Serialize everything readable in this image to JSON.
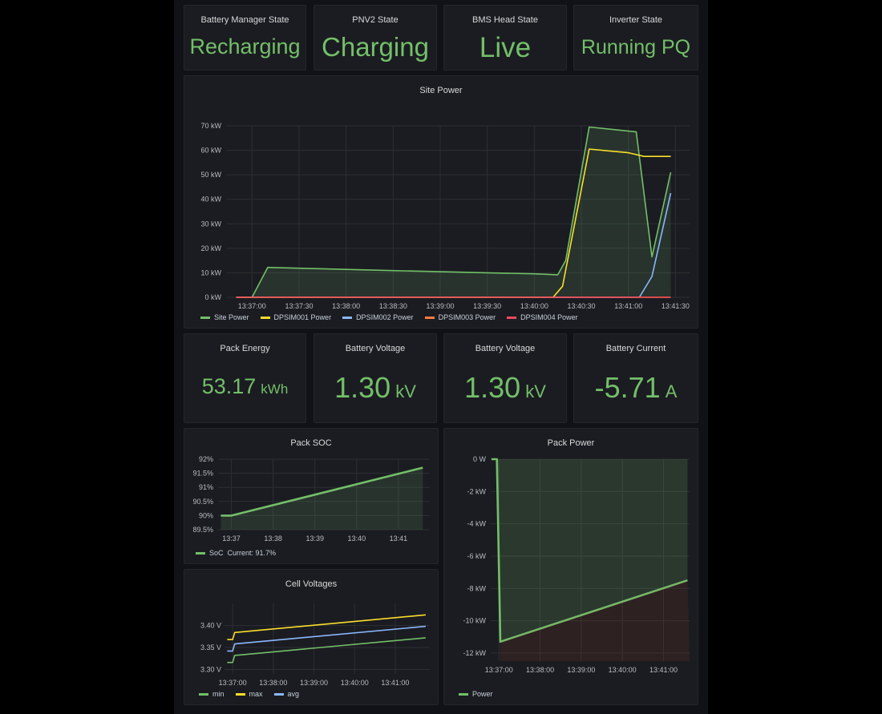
{
  "stats_top": [
    {
      "title": "Battery Manager State",
      "value": "Recharging"
    },
    {
      "title": "PNV2 State",
      "value": "Charging"
    },
    {
      "title": "BMS Head State",
      "value": "Live"
    },
    {
      "title": "Inverter State",
      "value": "Running PQ"
    }
  ],
  "stats_mid": [
    {
      "title": "Pack Energy",
      "value": "53.17",
      "unit": "kWh"
    },
    {
      "title": "Battery Voltage",
      "value": "1.30",
      "unit": "kV"
    },
    {
      "title": "Battery Voltage",
      "value": "1.30",
      "unit": "kV"
    },
    {
      "title": "Battery Current",
      "value": "-5.71",
      "unit": "A"
    }
  ],
  "colors": {
    "green": "#73bf69",
    "yellow": "#fade2a",
    "blue": "#8ab8ff",
    "orange": "#ff7c3f",
    "pink": "#f2495c"
  },
  "chart_data": [
    {
      "type": "line",
      "title": "Site Power",
      "yticks": [
        "0 kW",
        "10 kW",
        "20 kW",
        "30 kW",
        "40 kW",
        "50 kW",
        "60 kW",
        "70 kW"
      ],
      "ylim": [
        0,
        70
      ],
      "xticks": [
        "13:37:00",
        "13:37:30",
        "13:38:00",
        "13:38:30",
        "13:39:00",
        "13:39:30",
        "13:40:00",
        "13:40:30",
        "13:41:00",
        "13:41:30"
      ],
      "xlim": [
        "13:36:44",
        "13:41:39"
      ],
      "series": [
        {
          "name": "Site Power",
          "color": "#73bf69",
          "fill": true,
          "points": [
            [
              "13:36:50",
              0
            ],
            [
              "13:37:00",
              0
            ],
            [
              "13:37:10",
              12.2
            ],
            [
              "13:37:40",
              11.7
            ],
            [
              "13:38:30",
              10.9
            ],
            [
              "13:39:30",
              10
            ],
            [
              "13:40:00",
              9.6
            ],
            [
              "13:40:15",
              9.2
            ],
            [
              "13:40:20",
              15
            ],
            [
              "13:40:35",
              69.5
            ],
            [
              "13:41:05",
              67.5
            ],
            [
              "13:41:15",
              16.5
            ],
            [
              "13:41:27",
              51
            ]
          ]
        },
        {
          "name": "DPSIM001 Power",
          "color": "#fade2a",
          "fill": false,
          "points": [
            [
              "13:36:50",
              0
            ],
            [
              "13:40:12",
              0
            ],
            [
              "13:40:18",
              4.5
            ],
            [
              "13:40:35",
              60.5
            ],
            [
              "13:41:00",
              59
            ],
            [
              "13:41:10",
              57.5
            ],
            [
              "13:41:27",
              57.5
            ]
          ]
        },
        {
          "name": "DPSIM002 Power",
          "color": "#8ab8ff",
          "fill": false,
          "points": [
            [
              "13:36:50",
              0
            ],
            [
              "13:41:07",
              0
            ],
            [
              "13:41:15",
              8.5
            ],
            [
              "13:41:27",
              42.5
            ]
          ]
        },
        {
          "name": "DPSIM003 Power",
          "color": "#ff7c3f",
          "fill": false,
          "points": [
            [
              "13:36:50",
              0
            ],
            [
              "13:41:27",
              0
            ]
          ]
        },
        {
          "name": "DPSIM004 Power",
          "color": "#f2495c",
          "fill": false,
          "points": [
            [
              "13:36:50",
              0
            ],
            [
              "13:41:27",
              0
            ]
          ]
        }
      ]
    },
    {
      "type": "area",
      "title": "Pack SOC",
      "yticks": [
        "89.5%",
        "90%",
        "90.5%",
        "91%",
        "91.5%",
        "92%"
      ],
      "ylim": [
        89.5,
        92
      ],
      "xticks": [
        "13:37",
        "13:38",
        "13:39",
        "13:40",
        "13:41"
      ],
      "xlim": [
        "13:36:41",
        "13:41:45"
      ],
      "series": [
        {
          "name": "SoC",
          "color": "#73bf69",
          "points": [
            [
              "13:36:45",
              90
            ],
            [
              "13:37:00",
              90
            ],
            [
              "13:41:35",
              91.7
            ]
          ]
        }
      ],
      "legend": {
        "label": "SoC",
        "current_text": "Current: 91.7%"
      }
    },
    {
      "type": "line",
      "title": "Cell Voltages",
      "yticks": [
        "3.30 V",
        "3.35 V",
        "3.40 V"
      ],
      "ylim": [
        3.29,
        3.45
      ],
      "xticks": [
        "13:37:00",
        "13:38:00",
        "13:39:00",
        "13:40:00",
        "13:41:00"
      ],
      "xlim": [
        "13:36:48",
        "13:41:51"
      ],
      "series": [
        {
          "name": "min",
          "color": "#73bf69",
          "points": [
            [
              "13:36:52",
              3.316
            ],
            [
              "13:37:00",
              3.316
            ],
            [
              "13:37:03",
              3.332
            ],
            [
              "13:41:45",
              3.372
            ]
          ]
        },
        {
          "name": "max",
          "color": "#fade2a",
          "points": [
            [
              "13:36:52",
              3.368
            ],
            [
              "13:37:00",
              3.368
            ],
            [
              "13:37:03",
              3.384
            ],
            [
              "13:41:45",
              3.424
            ]
          ]
        },
        {
          "name": "avg",
          "color": "#8ab8ff",
          "points": [
            [
              "13:36:52",
              3.342
            ],
            [
              "13:37:00",
              3.342
            ],
            [
              "13:37:03",
              3.358
            ],
            [
              "13:41:45",
              3.398
            ]
          ]
        }
      ]
    },
    {
      "type": "area",
      "title": "Pack Power",
      "yticks": [
        "0 W",
        "-2 kW",
        "-4 kW",
        "-6 kW",
        "-8 kW",
        "-10 kW",
        "-12 kW"
      ],
      "ylim": [
        -12.5,
        0
      ],
      "xticks": [
        "13:37:00",
        "13:38:00",
        "13:39:00",
        "13:40:00",
        "13:41:00"
      ],
      "xlim": [
        "13:36:48",
        "13:41:38"
      ],
      "series": [
        {
          "name": "Power",
          "color": "#73bf69",
          "points": [
            [
              "13:36:49",
              0
            ],
            [
              "13:36:57",
              0
            ],
            [
              "13:37:02",
              -11.3
            ],
            [
              "13:41:35",
              -7.5
            ]
          ]
        }
      ]
    }
  ]
}
